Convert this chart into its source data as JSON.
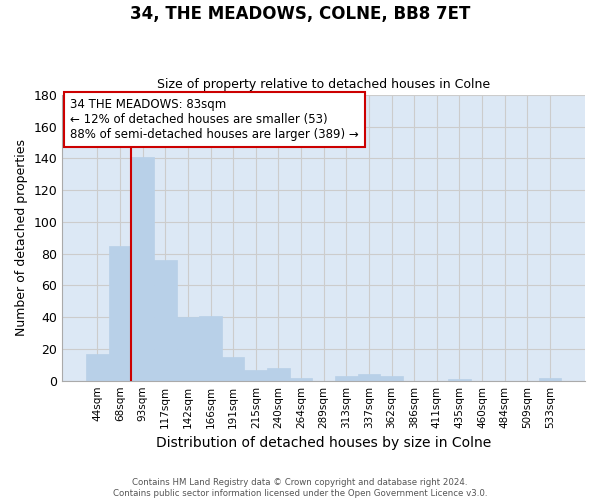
{
  "title": "34, THE MEADOWS, COLNE, BB8 7ET",
  "subtitle": "Size of property relative to detached houses in Colne",
  "xlabel": "Distribution of detached houses by size in Colne",
  "ylabel": "Number of detached properties",
  "categories": [
    "44sqm",
    "68sqm",
    "93sqm",
    "117sqm",
    "142sqm",
    "166sqm",
    "191sqm",
    "215sqm",
    "240sqm",
    "264sqm",
    "289sqm",
    "313sqm",
    "337sqm",
    "362sqm",
    "386sqm",
    "411sqm",
    "435sqm",
    "460sqm",
    "484sqm",
    "509sqm",
    "533sqm"
  ],
  "values": [
    17,
    85,
    141,
    76,
    40,
    41,
    15,
    7,
    8,
    2,
    0,
    3,
    4,
    3,
    0,
    0,
    1,
    0,
    0,
    0,
    2
  ],
  "bar_color": "#b8d0e8",
  "bar_edge_color": "#b8d0e8",
  "vline_x_index": 1.5,
  "vline_color": "#cc0000",
  "box_text_line1": "34 THE MEADOWS: 83sqm",
  "box_text_line2": "← 12% of detached houses are smaller (53)",
  "box_text_line3": "88% of semi-detached houses are larger (389) →",
  "box_color": "#ffffff",
  "box_edge_color": "#cc0000",
  "ylim": [
    0,
    180
  ],
  "yticks": [
    0,
    20,
    40,
    60,
    80,
    100,
    120,
    140,
    160,
    180
  ],
  "grid_color": "#cccccc",
  "bg_color": "#dce8f5",
  "fig_bg_color": "#ffffff",
  "footer_line1": "Contains HM Land Registry data © Crown copyright and database right 2024.",
  "footer_line2": "Contains public sector information licensed under the Open Government Licence v3.0."
}
